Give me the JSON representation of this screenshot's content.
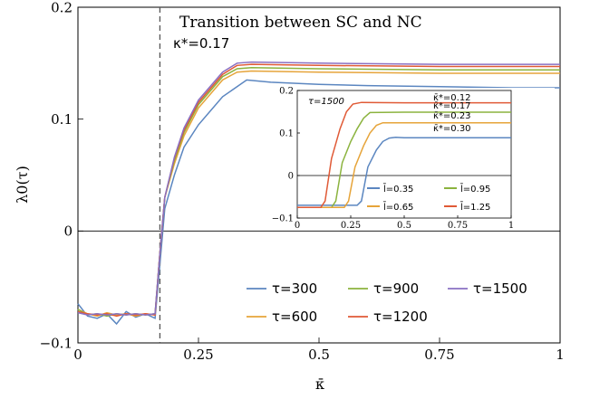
{
  "chart_data": [
    {
      "type": "line",
      "title": "Transition between SC and NC",
      "annotation": "κ*=0.17",
      "xlabel": "κ̄",
      "ylabel": "λ0(τ)",
      "xlim": [
        0,
        1
      ],
      "ylim": [
        -0.1,
        0.2
      ],
      "xticks": [
        0,
        0.25,
        0.5,
        0.75,
        1
      ],
      "xtick_labels": [
        "0",
        "0.25",
        "0.5",
        "0.75",
        "1"
      ],
      "yticks": [
        -0.1,
        0,
        0.1,
        0.2
      ],
      "ytick_labels": [
        "−0.1",
        "0",
        "0.1",
        "0.2"
      ],
      "vline": 0.17,
      "hline": 0,
      "legend_position": "lower-right",
      "series": [
        {
          "name": "τ=300",
          "color": "#5b86c0",
          "x": [
            0,
            0.02,
            0.04,
            0.06,
            0.08,
            0.1,
            0.12,
            0.14,
            0.16,
            0.17,
            0.18,
            0.2,
            0.22,
            0.25,
            0.3,
            0.35,
            0.4,
            0.5,
            0.6,
            0.75,
            0.9,
            1
          ],
          "y": [
            -0.065,
            -0.076,
            -0.078,
            -0.074,
            -0.083,
            -0.072,
            -0.077,
            -0.074,
            -0.078,
            -0.03,
            0.02,
            0.05,
            0.075,
            0.095,
            0.12,
            0.135,
            0.133,
            0.131,
            0.13,
            0.129,
            0.128,
            0.128
          ]
        },
        {
          "name": "τ=600",
          "color": "#e6a43a",
          "x": [
            0,
            0.02,
            0.04,
            0.06,
            0.08,
            0.1,
            0.12,
            0.14,
            0.16,
            0.17,
            0.18,
            0.2,
            0.22,
            0.25,
            0.3,
            0.33,
            0.36,
            0.5,
            0.75,
            1
          ],
          "y": [
            -0.07,
            -0.074,
            -0.076,
            -0.073,
            -0.075,
            -0.074,
            -0.076,
            -0.074,
            -0.075,
            -0.02,
            0.03,
            0.06,
            0.085,
            0.11,
            0.135,
            0.142,
            0.143,
            0.142,
            0.141,
            0.141
          ]
        },
        {
          "name": "τ=900",
          "color": "#8bb33e",
          "x": [
            0,
            0.02,
            0.04,
            0.06,
            0.08,
            0.1,
            0.12,
            0.14,
            0.16,
            0.17,
            0.18,
            0.2,
            0.22,
            0.25,
            0.3,
            0.33,
            0.36,
            0.5,
            0.75,
            1
          ],
          "y": [
            -0.07,
            -0.075,
            -0.074,
            -0.076,
            -0.074,
            -0.075,
            -0.074,
            -0.075,
            -0.074,
            -0.02,
            0.03,
            0.063,
            0.088,
            0.113,
            0.138,
            0.145,
            0.146,
            0.145,
            0.144,
            0.144
          ]
        },
        {
          "name": "τ=1200",
          "color": "#e05a36",
          "x": [
            0,
            0.02,
            0.04,
            0.06,
            0.08,
            0.1,
            0.12,
            0.14,
            0.16,
            0.17,
            0.18,
            0.2,
            0.22,
            0.25,
            0.3,
            0.33,
            0.36,
            0.5,
            0.75,
            1
          ],
          "y": [
            -0.072,
            -0.074,
            -0.075,
            -0.074,
            -0.076,
            -0.074,
            -0.075,
            -0.074,
            -0.075,
            -0.02,
            0.03,
            0.065,
            0.09,
            0.115,
            0.14,
            0.148,
            0.149,
            0.148,
            0.147,
            0.147
          ]
        },
        {
          "name": "τ=1500",
          "color": "#8a70c2",
          "x": [
            0,
            0.02,
            0.04,
            0.06,
            0.08,
            0.1,
            0.12,
            0.14,
            0.16,
            0.17,
            0.18,
            0.2,
            0.22,
            0.25,
            0.3,
            0.33,
            0.36,
            0.5,
            0.75,
            1
          ],
          "y": [
            -0.073,
            -0.075,
            -0.074,
            -0.075,
            -0.074,
            -0.075,
            -0.074,
            -0.075,
            -0.074,
            -0.02,
            0.03,
            0.066,
            0.092,
            0.117,
            0.142,
            0.15,
            0.151,
            0.15,
            0.149,
            0.149
          ]
        }
      ]
    },
    {
      "type": "line",
      "title": "τ=1500",
      "xlim": [
        0,
        1
      ],
      "ylim": [
        -0.1,
        0.2
      ],
      "xticks": [
        0,
        0.25,
        0.5,
        0.75,
        1
      ],
      "xtick_labels": [
        "0",
        "0.25",
        "0.5",
        "0.75",
        "1"
      ],
      "yticks": [
        -0.1,
        0,
        0.1,
        0.2
      ],
      "ytick_labels": [
        "−0.1",
        "0",
        "0.1",
        "0.2"
      ],
      "hline": 0,
      "legend_position": "bottom-center",
      "curve_labels": [
        "κ̄*=0.12",
        "κ̄*=0.17",
        "κ̄*=0.23",
        "κ̄*=0.30"
      ],
      "series": [
        {
          "name": "l̄=0.35",
          "color": "#5b86c0",
          "x": [
            0,
            0.28,
            0.3,
            0.33,
            0.37,
            0.4,
            0.43,
            0.46,
            0.5,
            0.75,
            1
          ],
          "y": [
            -0.07,
            -0.07,
            -0.06,
            0.02,
            0.06,
            0.08,
            0.088,
            0.09,
            0.089,
            0.089,
            0.089
          ]
        },
        {
          "name": "l̄=0.95",
          "color": "#8bb33e",
          "x": [
            0,
            0.16,
            0.18,
            0.21,
            0.25,
            0.28,
            0.31,
            0.34,
            0.5,
            0.75,
            1
          ],
          "y": [
            -0.075,
            -0.075,
            -0.06,
            0.03,
            0.08,
            0.11,
            0.135,
            0.148,
            0.149,
            0.149,
            0.149
          ]
        },
        {
          "name": "l̄=0.65",
          "color": "#e6a43a",
          "x": [
            0,
            0.22,
            0.24,
            0.27,
            0.31,
            0.34,
            0.37,
            0.4,
            0.5,
            0.75,
            1
          ],
          "y": [
            -0.075,
            -0.075,
            -0.06,
            0.02,
            0.07,
            0.1,
            0.118,
            0.124,
            0.124,
            0.124,
            0.124
          ]
        },
        {
          "name": "l̄=1.25",
          "color": "#e05a36",
          "x": [
            0,
            0.11,
            0.13,
            0.16,
            0.2,
            0.23,
            0.26,
            0.3,
            0.5,
            0.75,
            1
          ],
          "y": [
            -0.075,
            -0.075,
            -0.06,
            0.04,
            0.11,
            0.15,
            0.168,
            0.172,
            0.171,
            0.171,
            0.171
          ]
        }
      ]
    }
  ]
}
